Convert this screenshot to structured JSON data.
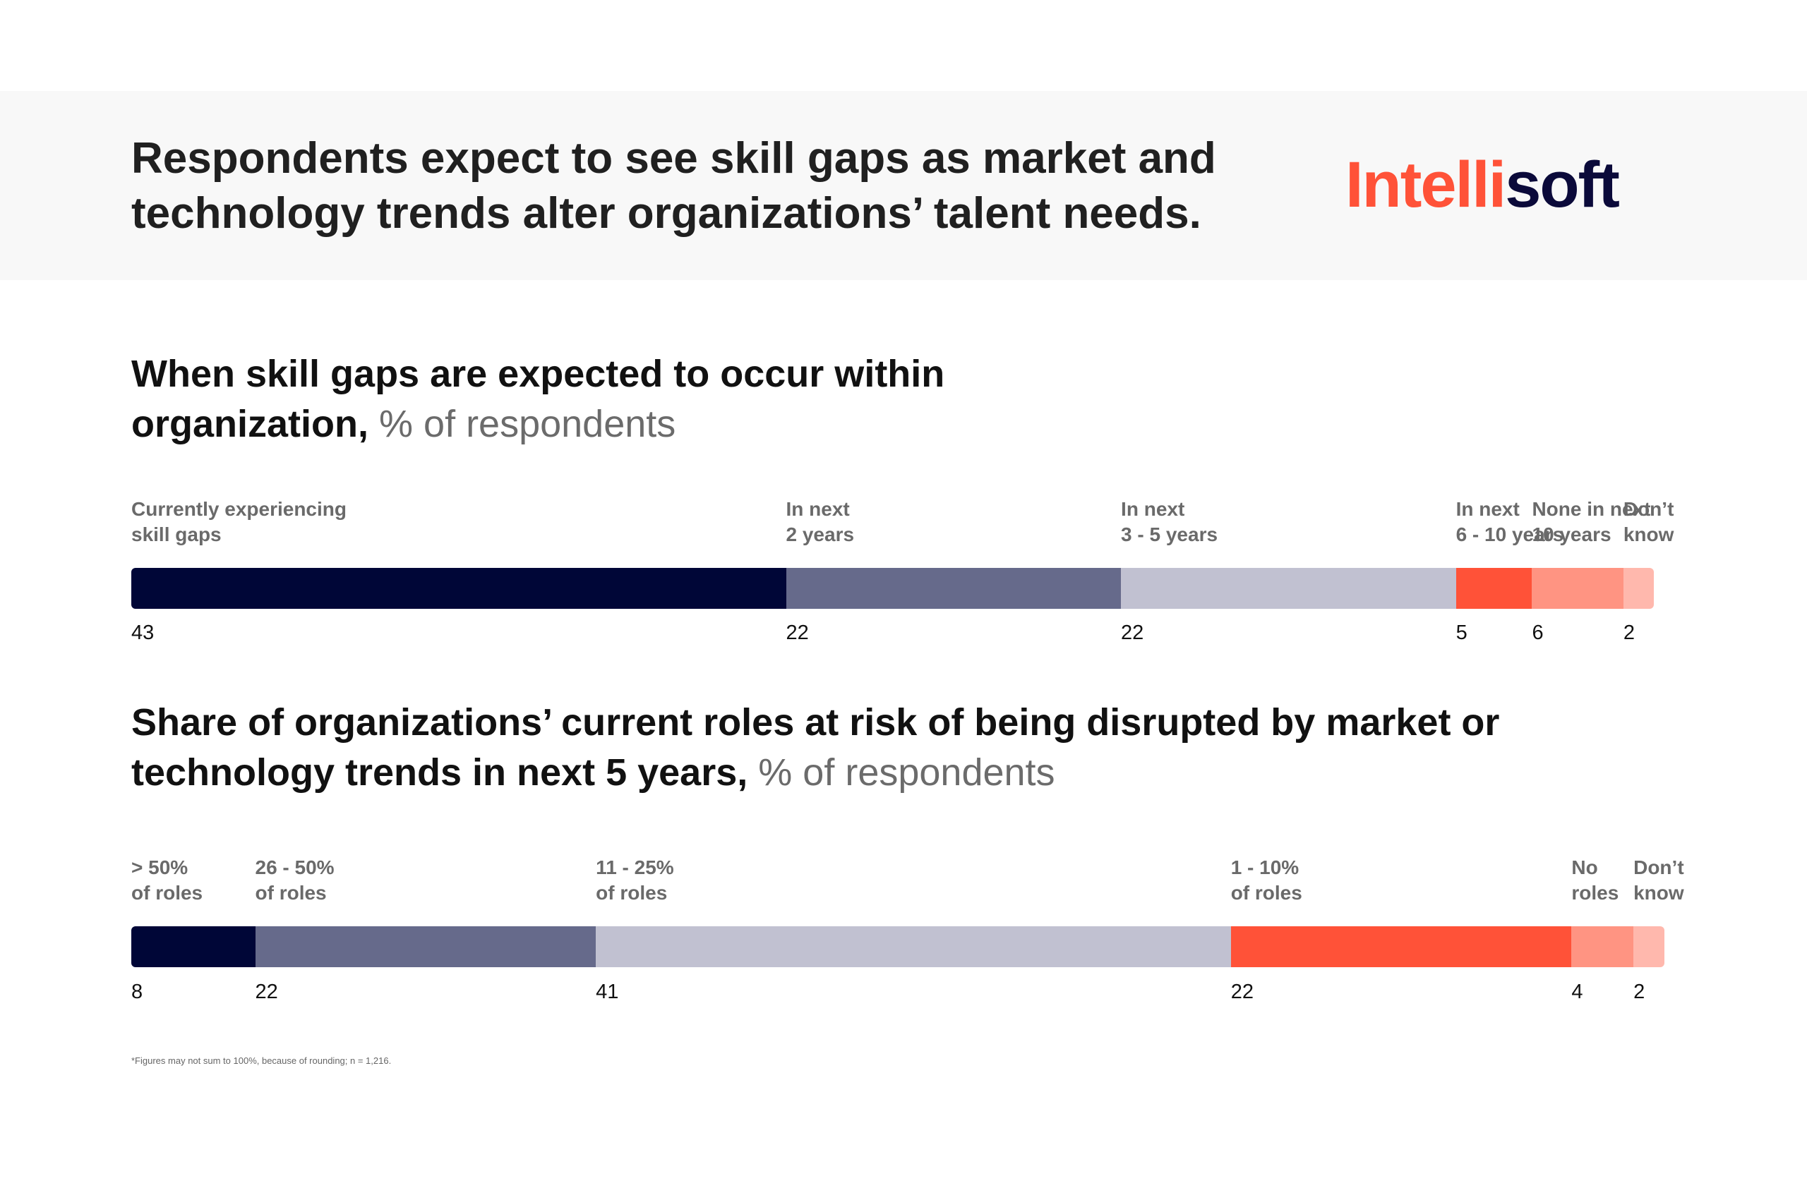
{
  "header": {
    "headline": "Respondents expect to see skill gaps as market and technology trends alter organizations’ talent needs.",
    "logo": {
      "part1": "Intelli",
      "part2": "soft"
    }
  },
  "colors": {
    "navy": "#000637",
    "slate": "#666a8b",
    "lavender": "#c1c1d1",
    "red": "#ff5238",
    "salmon": "#ff9482",
    "pink": "#ffb8ad",
    "logo_red": "#ff5238",
    "logo_navy": "#0b0a3a"
  },
  "chart_data": [
    {
      "type": "bar",
      "stacked": true,
      "orientation": "horizontal",
      "title": "When skill gaps are expected to occur within organization,",
      "title_unit": "% of respondents",
      "categories": [
        "Currently experiencing\nskill gaps",
        "In next\n2 years",
        "In next\n3 - 5 years",
        "In next\n6 - 10 years",
        "None in next\n10 years",
        "Don’t\nknow"
      ],
      "values": [
        43,
        22,
        22,
        5,
        6,
        2
      ]
    },
    {
      "type": "bar",
      "stacked": true,
      "orientation": "horizontal",
      "title": "Share of organizations’ current roles at risk of being disrupted by market or technology trends in next 5 years,",
      "title_unit": "% of respondents",
      "categories": [
        "> 50%\nof roles",
        "26 - 50%\nof roles",
        "11 - 25%\nof roles",
        "1 - 10%\nof roles",
        "No\nroles",
        "Don’t\nknow"
      ],
      "values": [
        8,
        22,
        41,
        22,
        4,
        2
      ]
    }
  ],
  "footnote": "*Figures may not sum to 100%, because of rounding; n = 1,216."
}
